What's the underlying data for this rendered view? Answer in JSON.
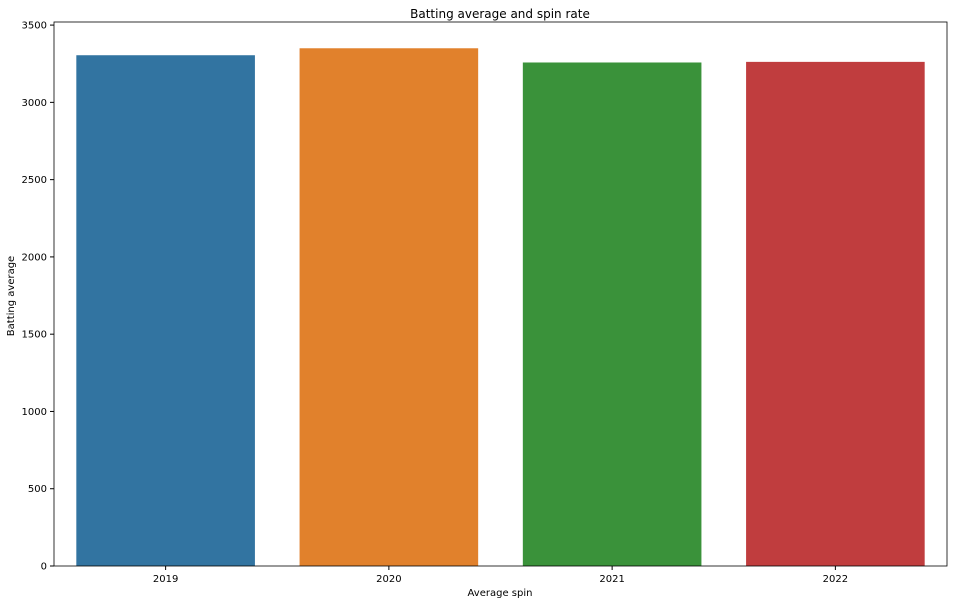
{
  "chart_data": {
    "type": "bar",
    "title": "Batting average and spin rate",
    "xlabel": "Average spin",
    "ylabel": "Batting average",
    "categories": [
      "2019",
      "2020",
      "2021",
      "2022"
    ],
    "values": [
      3305,
      3350,
      3258,
      3262
    ],
    "colors": [
      "#3274a1",
      "#e1812c",
      "#3a923a",
      "#c03d3e"
    ],
    "ylim": [
      0,
      3520
    ],
    "yticks": [
      0,
      500,
      1000,
      1500,
      2000,
      2500,
      3000,
      3500
    ],
    "grid": false,
    "legend": false
  }
}
